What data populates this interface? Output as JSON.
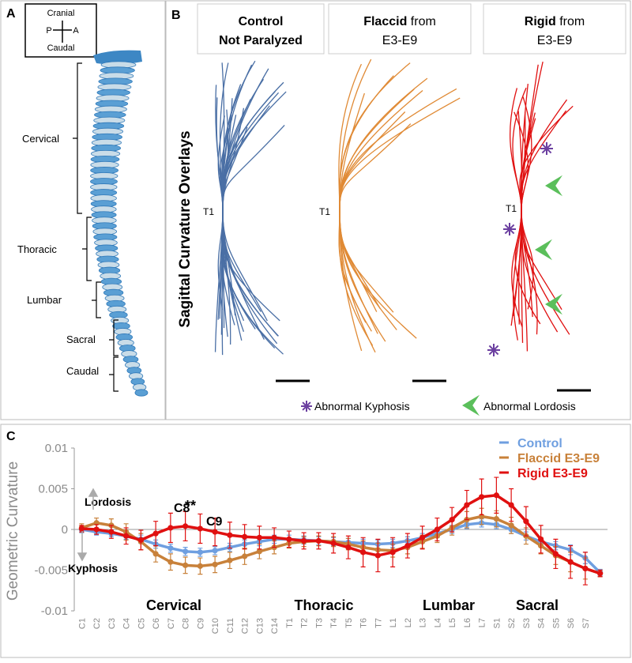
{
  "panel_a": {
    "label": "A",
    "compass": {
      "top": "Cranial",
      "left": "P",
      "right": "A",
      "bottom": "Caudal"
    },
    "regions": [
      "Cervical",
      "Thoracic",
      "Lumbar",
      "Sacral",
      "Caudal"
    ]
  },
  "panel_b": {
    "label": "B",
    "side_title": "Sagittal Curvature Overlays",
    "columns": [
      {
        "bold": "Control",
        "rest": "Not Paralyzed"
      },
      {
        "bold": "Flaccid",
        "from": "from",
        "rest": "E3-E9"
      },
      {
        "bold": "Rigid",
        "from": "from",
        "rest": "E3-E9"
      }
    ],
    "landmark": "T1",
    "legend": [
      "Abnormal Kyphosis",
      "Abnormal Lordosis"
    ]
  },
  "chart_data": {
    "type": "line",
    "panel_label": "C",
    "y_label": "Geometric Curvature",
    "categories": [
      "C1",
      "C2",
      "C3",
      "C4",
      "C5",
      "C6",
      "C7",
      "C8",
      "C9",
      "C10",
      "C11",
      "C12",
      "C13",
      "C14",
      "T1",
      "T2",
      "T3",
      "T4",
      "T5",
      "T6",
      "T7",
      "L1",
      "L2",
      "L3",
      "L4",
      "L5",
      "L6",
      "L7",
      "S1",
      "S2",
      "S3",
      "S4",
      "S5",
      "S6",
      "S7",
      null
    ],
    "ylim": [
      -0.01,
      0.01
    ],
    "yticks": [
      0.01,
      0.005,
      0,
      -0.005,
      -0.01
    ],
    "series": [
      {
        "name": "Control",
        "color": "#6f9fe0",
        "values": [
          0,
          -0.0003,
          -0.0005,
          -0.0008,
          -0.0012,
          -0.0018,
          -0.0023,
          -0.0027,
          -0.0028,
          -0.0026,
          -0.0022,
          -0.0018,
          -0.0015,
          -0.0012,
          -0.0012,
          -0.0013,
          -0.0014,
          -0.0015,
          -0.0016,
          -0.0017,
          -0.0018,
          -0.0017,
          -0.0014,
          -0.001,
          -0.0005,
          0,
          0.0006,
          0.0008,
          0.0006,
          0,
          -0.0008,
          -0.0015,
          -0.002,
          -0.0025,
          -0.0035,
          -0.0053
        ],
        "errors": [
          0.0004,
          0.0004,
          0.0004,
          0.0004,
          0.0005,
          0.0005,
          0.0005,
          0.0005,
          0.0005,
          0.0005,
          0.0005,
          0.0005,
          0.0005,
          0.0005,
          0.0005,
          0.0005,
          0.0005,
          0.0005,
          0.0005,
          0.0005,
          0.0005,
          0.0005,
          0.0005,
          0.0005,
          0.0005,
          0.0005,
          0.0005,
          0.0005,
          0.0005,
          0.0005,
          0.0005,
          0.0005,
          0.0005,
          0.0006,
          0.0007,
          0.0004
        ]
      },
      {
        "name": "Flaccid E3-E9",
        "color": "#c8813a",
        "values": [
          0.0002,
          0.0008,
          0.0005,
          -0.0003,
          -0.0015,
          -0.003,
          -0.004,
          -0.0044,
          -0.0045,
          -0.0043,
          -0.0038,
          -0.0033,
          -0.0027,
          -0.0022,
          -0.0017,
          -0.0015,
          -0.0014,
          -0.0015,
          -0.0018,
          -0.0022,
          -0.0025,
          -0.0026,
          -0.0022,
          -0.0015,
          -0.0008,
          0.0002,
          0.0012,
          0.0016,
          0.0013,
          0.0005,
          -0.0008,
          -0.002,
          -0.0032,
          -0.004,
          -0.0048,
          -0.0054
        ],
        "errors": [
          0.0005,
          0.0006,
          0.0008,
          0.001,
          0.001,
          0.001,
          0.001,
          0.001,
          0.001,
          0.001,
          0.001,
          0.001,
          0.0009,
          0.0008,
          0.0006,
          0.0006,
          0.0006,
          0.0006,
          0.0007,
          0.0008,
          0.0008,
          0.0008,
          0.0008,
          0.0008,
          0.0008,
          0.0009,
          0.001,
          0.001,
          0.001,
          0.001,
          0.001,
          0.001,
          0.0011,
          0.0012,
          0.0013,
          0.0004
        ]
      },
      {
        "name": "Rigid E3-E9",
        "color": "#e01010",
        "values": [
          0.0001,
          0,
          -0.0003,
          -0.0008,
          -0.0013,
          -0.0005,
          0.0002,
          0.0004,
          0.0001,
          -0.0003,
          -0.0007,
          -0.0009,
          -0.001,
          -0.001,
          -0.0012,
          -0.0014,
          -0.0014,
          -0.0017,
          -0.0022,
          -0.0028,
          -0.0032,
          -0.0028,
          -0.002,
          -0.001,
          0,
          0.0012,
          0.003,
          0.004,
          0.0042,
          0.003,
          0.001,
          -0.0012,
          -0.003,
          -0.004,
          -0.0048,
          -0.0054
        ],
        "errors": [
          0.0004,
          0.0006,
          0.0008,
          0.001,
          0.0012,
          0.0015,
          0.0018,
          0.0018,
          0.0018,
          0.0017,
          0.0016,
          0.0015,
          0.0014,
          0.0012,
          0.001,
          0.001,
          0.001,
          0.0012,
          0.0014,
          0.0018,
          0.002,
          0.0018,
          0.0015,
          0.0014,
          0.0014,
          0.0015,
          0.0018,
          0.0022,
          0.0022,
          0.002,
          0.0018,
          0.0017,
          0.0018,
          0.002,
          0.002,
          0.0004
        ]
      }
    ],
    "regions": [
      "Cervical",
      "Thoracic",
      "Lumbar",
      "Sacral"
    ],
    "annotations": {
      "lordosis": "Lordosis",
      "kyphosis": "Kyphosis",
      "c8": "C8",
      "stars": "**",
      "c9": "C9"
    }
  }
}
